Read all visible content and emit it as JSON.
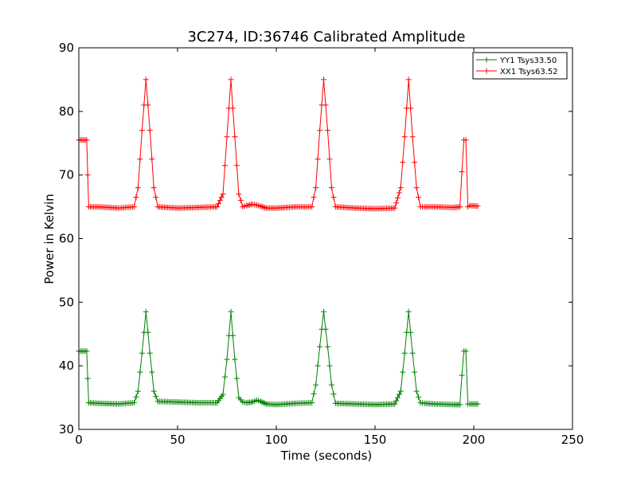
{
  "chart_data": {
    "type": "line",
    "title": "3C274, ID:36746 Calibrated Amplitude",
    "xlabel": "Time (seconds)",
    "ylabel": "Power in Kelvin",
    "xlim": [
      0,
      250
    ],
    "ylim": [
      30,
      90
    ],
    "xticks": [
      0,
      50,
      100,
      150,
      200,
      250
    ],
    "yticks": [
      30,
      40,
      50,
      60,
      70,
      80,
      90
    ],
    "grid": false,
    "legend_position": "top-right",
    "marker": "+",
    "series": [
      {
        "name": "YY1 Tsys33.50",
        "color": "#008000",
        "x": [
          0,
          4,
          4.5,
          5,
          10,
          20,
          28,
          30,
          32,
          34,
          36,
          38,
          40,
          50,
          60,
          70,
          73,
          75,
          77,
          79,
          81,
          83,
          85,
          88,
          90,
          92,
          95,
          100,
          110,
          118,
          120,
          122,
          124,
          126,
          128,
          130,
          140,
          150,
          160,
          163,
          165,
          167,
          169,
          171,
          173,
          175,
          180,
          190,
          193,
          194,
          195,
          196,
          197,
          198,
          202
        ],
        "y": [
          42.3,
          42.3,
          38,
          34.2,
          34.1,
          34.0,
          34.2,
          36,
          42,
          48.5,
          42,
          36,
          34.4,
          34.3,
          34.2,
          34.2,
          35.5,
          41,
          48.5,
          41,
          35,
          34.3,
          34.2,
          34.3,
          34.6,
          34.4,
          34.0,
          33.9,
          34.1,
          34.2,
          37,
          43,
          48.5,
          43,
          37,
          34.1,
          34.0,
          33.9,
          34.0,
          36,
          42,
          48.5,
          42,
          36,
          34.2,
          34.1,
          34.0,
          33.9,
          33.9,
          38.5,
          42.3,
          42.3,
          34.0,
          34.0,
          34.0
        ]
      },
      {
        "name": "XX1 Tsys63.52",
        "color": "#ff0000",
        "x": [
          0,
          4,
          4.5,
          5,
          10,
          20,
          28,
          30,
          32,
          34,
          36,
          38,
          40,
          50,
          60,
          70,
          73,
          75,
          77,
          79,
          81,
          83,
          85,
          88,
          90,
          92,
          95,
          100,
          110,
          118,
          120,
          122,
          124,
          126,
          128,
          130,
          140,
          150,
          160,
          163,
          165,
          167,
          169,
          171,
          173,
          175,
          180,
          190,
          193,
          194,
          195,
          196,
          197,
          198,
          202
        ],
        "y": [
          75.5,
          75.5,
          70,
          65,
          65,
          64.8,
          65,
          68,
          77,
          85,
          77,
          68,
          65,
          64.8,
          64.9,
          65,
          67,
          76,
          85,
          76,
          67,
          65,
          65.2,
          65.4,
          65.3,
          65.1,
          64.8,
          64.8,
          65,
          65,
          68,
          77,
          85,
          77,
          68,
          65,
          64.8,
          64.7,
          64.8,
          68,
          76,
          85,
          76,
          68,
          65,
          65,
          65,
          64.9,
          65,
          70.5,
          75.5,
          75.5,
          65,
          65.2,
          65.1
        ]
      }
    ]
  }
}
